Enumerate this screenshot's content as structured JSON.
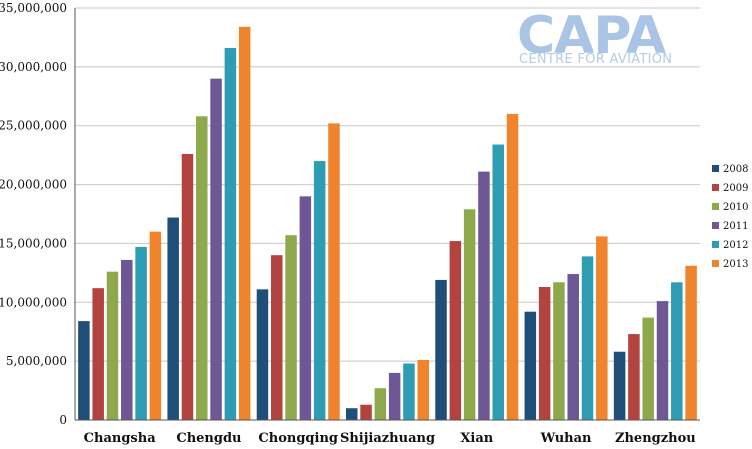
{
  "logo": {
    "name": "CAPA",
    "tagline": "CENTRE FOR AVIATION"
  },
  "chart_data": {
    "type": "bar",
    "categories": [
      "Changsha",
      "Chengdu",
      "Chongqing",
      "Shijiazhuang",
      "Xian",
      "Wuhan",
      "Zhengzhou"
    ],
    "series": [
      {
        "name": "2008",
        "color": "#1f4e79",
        "values": [
          8400000,
          17200000,
          11100000,
          1000000,
          11900000,
          9200000,
          5800000
        ]
      },
      {
        "name": "2009",
        "color": "#b2433f",
        "values": [
          11200000,
          22600000,
          14000000,
          1300000,
          15200000,
          11300000,
          7300000
        ]
      },
      {
        "name": "2010",
        "color": "#8ea94c",
        "values": [
          12600000,
          25800000,
          15700000,
          2700000,
          17900000,
          11700000,
          8700000
        ]
      },
      {
        "name": "2011",
        "color": "#6f5796",
        "values": [
          13600000,
          29000000,
          19000000,
          4000000,
          21100000,
          12400000,
          10100000
        ]
      },
      {
        "name": "2012",
        "color": "#2e9db4",
        "values": [
          14700000,
          31600000,
          22000000,
          4800000,
          23400000,
          13900000,
          11700000
        ]
      },
      {
        "name": "2013",
        "color": "#f0842c",
        "values": [
          16000000,
          33400000,
          25200000,
          5100000,
          26000000,
          15600000,
          13100000
        ]
      }
    ],
    "yticks": [
      "0",
      "5,000,000",
      "10,000,000",
      "15,000,000",
      "20,000,000",
      "25,000,000",
      "30,000,000",
      "35,000,000"
    ],
    "ylim": [
      0,
      35000000
    ],
    "grid": true,
    "legend_position": "right"
  }
}
